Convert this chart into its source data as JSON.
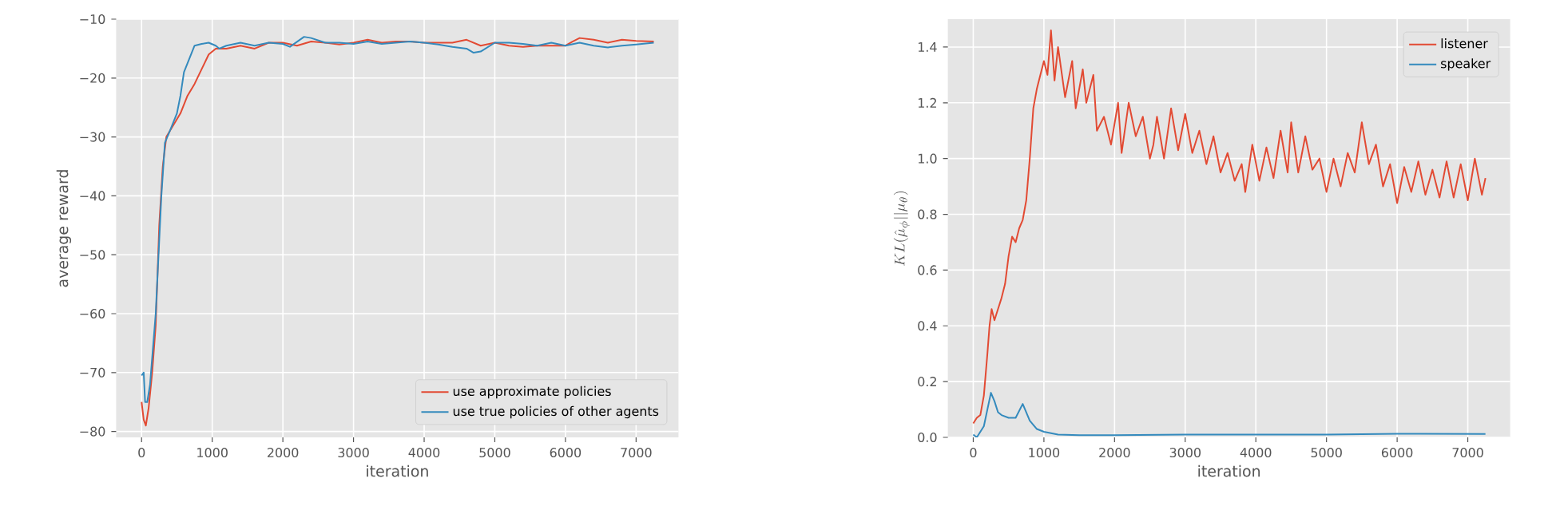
{
  "chart_data": [
    {
      "type": "line",
      "xlabel": "iteration",
      "ylabel": "average reward",
      "xlim": [
        -360,
        7600
      ],
      "ylim": [
        -81,
        -10
      ],
      "xticks": [
        0,
        1000,
        2000,
        3000,
        4000,
        5000,
        6000,
        7000
      ],
      "yticks": [
        {
          "value": -80,
          "label": "−80"
        },
        {
          "value": -70,
          "label": "−70"
        },
        {
          "value": -60,
          "label": "−60"
        },
        {
          "value": -50,
          "label": "−50"
        },
        {
          "value": -40,
          "label": "−40"
        },
        {
          "value": -30,
          "label": "−30"
        },
        {
          "value": -20,
          "label": "−20"
        },
        {
          "value": -10,
          "label": "−10"
        }
      ],
      "grid": true,
      "legend": "bottom right",
      "series": [
        {
          "name": "use approximate policies",
          "color": "#e24a33",
          "x": [
            0,
            30,
            60,
            100,
            150,
            200,
            250,
            300,
            350,
            450,
            550,
            650,
            750,
            850,
            950,
            1050,
            1200,
            1400,
            1600,
            1800,
            2000,
            2200,
            2400,
            2600,
            2800,
            3000,
            3200,
            3400,
            3600,
            3800,
            4000,
            4200,
            4400,
            4600,
            4800,
            5000,
            5200,
            5400,
            5600,
            5800,
            6000,
            6100,
            6200,
            6400,
            6600,
            6800,
            7000,
            7250
          ],
          "values": [
            -75,
            -78,
            -79,
            -76,
            -70,
            -62,
            -45,
            -35,
            -30,
            -28,
            -26,
            -23,
            -21,
            -18.5,
            -16,
            -15,
            -15,
            -14.5,
            -15,
            -14,
            -14,
            -14.5,
            -13.8,
            -14,
            -14.3,
            -14,
            -13.5,
            -14,
            -13.8,
            -13.8,
            -14,
            -14,
            -14,
            -13.5,
            -14.5,
            -14,
            -14.5,
            -14.7,
            -14.5,
            -14.5,
            -14.5,
            -13.8,
            -13.2,
            -13.5,
            -14,
            -13.5,
            -13.7,
            -13.8
          ]
        },
        {
          "name": "use true policies of other agents",
          "color": "#348abd",
          "x": [
            0,
            30,
            50,
            80,
            120,
            200,
            280,
            330,
            400,
            500,
            550,
            600,
            700,
            750,
            850,
            950,
            1050,
            1100,
            1200,
            1400,
            1600,
            1800,
            2000,
            2100,
            2300,
            2400,
            2600,
            2800,
            3000,
            3200,
            3400,
            3600,
            3800,
            4000,
            4200,
            4400,
            4600,
            4700,
            4800,
            5000,
            5200,
            5400,
            5600,
            5800,
            6000,
            6200,
            6400,
            6600,
            6800,
            7000,
            7250
          ],
          "values": [
            -70.5,
            -70,
            -75,
            -75,
            -72,
            -60,
            -40,
            -31,
            -29,
            -26,
            -23,
            -19,
            -16,
            -14.5,
            -14.2,
            -14,
            -14.5,
            -15,
            -14.5,
            -14,
            -14.5,
            -14,
            -14.2,
            -14.7,
            -13,
            -13.2,
            -14,
            -14,
            -14.2,
            -13.8,
            -14.2,
            -14,
            -13.8,
            -14,
            -14.3,
            -14.7,
            -15,
            -15.7,
            -15.5,
            -14,
            -14,
            -14.2,
            -14.5,
            -14,
            -14.5,
            -14,
            -14.5,
            -14.8,
            -14.5,
            -14.3,
            -14
          ]
        }
      ]
    },
    {
      "type": "line",
      "xlabel": "iteration",
      "ylabel": "KL(\\hat{\\mu}_\\phi || \\mu_\\theta)",
      "xlim": [
        -360,
        7600
      ],
      "ylim": [
        0,
        1.5
      ],
      "xticks": [
        0,
        1000,
        2000,
        3000,
        4000,
        5000,
        6000,
        7000
      ],
      "yticks": [
        {
          "value": 0,
          "label": "0.0"
        },
        {
          "value": 0.2,
          "label": "0.2"
        },
        {
          "value": 0.4,
          "label": "0.4"
        },
        {
          "value": 0.6,
          "label": "0.6"
        },
        {
          "value": 0.8,
          "label": "0.8"
        },
        {
          "value": 1,
          "label": "1.0"
        },
        {
          "value": 1.2,
          "label": "1.2"
        },
        {
          "value": 1.4,
          "label": "1.4"
        }
      ],
      "grid": true,
      "legend": "top right",
      "series": [
        {
          "name": "listener",
          "color": "#e24a33",
          "x": [
            0,
            50,
            100,
            150,
            200,
            230,
            260,
            300,
            350,
            400,
            450,
            500,
            550,
            600,
            650,
            700,
            750,
            800,
            850,
            900,
            950,
            1000,
            1050,
            1100,
            1150,
            1200,
            1300,
            1400,
            1450,
            1550,
            1600,
            1700,
            1750,
            1850,
            1950,
            2050,
            2100,
            2200,
            2300,
            2400,
            2500,
            2550,
            2600,
            2700,
            2800,
            2900,
            3000,
            3100,
            3200,
            3300,
            3400,
            3500,
            3600,
            3700,
            3800,
            3850,
            3950,
            4050,
            4150,
            4250,
            4350,
            4450,
            4500,
            4600,
            4700,
            4800,
            4900,
            5000,
            5100,
            5200,
            5300,
            5400,
            5500,
            5600,
            5700,
            5800,
            5900,
            6000,
            6100,
            6200,
            6300,
            6400,
            6500,
            6600,
            6700,
            6800,
            6900,
            7000,
            7100,
            7200,
            7250
          ],
          "values": [
            0.05,
            0.07,
            0.08,
            0.15,
            0.3,
            0.4,
            0.46,
            0.42,
            0.46,
            0.5,
            0.55,
            0.65,
            0.72,
            0.7,
            0.75,
            0.78,
            0.85,
            1.0,
            1.18,
            1.25,
            1.3,
            1.35,
            1.3,
            1.46,
            1.28,
            1.4,
            1.22,
            1.35,
            1.18,
            1.32,
            1.2,
            1.3,
            1.1,
            1.15,
            1.05,
            1.2,
            1.02,
            1.2,
            1.08,
            1.15,
            1.0,
            1.05,
            1.15,
            1.0,
            1.18,
            1.03,
            1.16,
            1.02,
            1.1,
            0.98,
            1.08,
            0.95,
            1.02,
            0.92,
            0.98,
            0.88,
            1.05,
            0.92,
            1.04,
            0.93,
            1.1,
            0.95,
            1.13,
            0.95,
            1.08,
            0.96,
            1.0,
            0.88,
            1.0,
            0.9,
            1.02,
            0.95,
            1.13,
            0.98,
            1.05,
            0.9,
            0.98,
            0.84,
            0.97,
            0.88,
            0.99,
            0.87,
            0.96,
            0.86,
            0.99,
            0.86,
            0.98,
            0.85,
            1.0,
            0.87,
            0.93
          ]
        },
        {
          "name": "speaker",
          "color": "#348abd",
          "x": [
            0,
            50,
            100,
            150,
            200,
            250,
            300,
            350,
            400,
            500,
            600,
            700,
            800,
            900,
            1000,
            1200,
            1500,
            2000,
            3000,
            4000,
            5000,
            6000,
            7250
          ],
          "values": [
            0.01,
            0.0,
            0.02,
            0.04,
            0.1,
            0.16,
            0.13,
            0.09,
            0.08,
            0.07,
            0.07,
            0.12,
            0.06,
            0.03,
            0.02,
            0.01,
            0.008,
            0.008,
            0.01,
            0.01,
            0.01,
            0.013,
            0.012
          ]
        }
      ]
    }
  ]
}
